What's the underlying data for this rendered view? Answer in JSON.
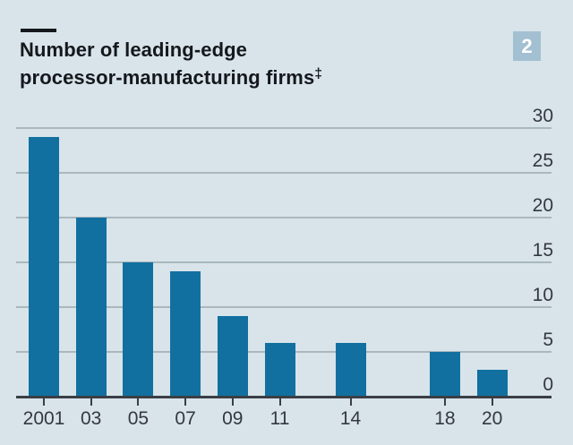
{
  "header": {
    "title_line1": "Number of leading-edge",
    "title_line2": "processor-manufacturing firms",
    "footnote_marker": "‡",
    "badge_label": "2"
  },
  "colors": {
    "background": "#d8e4ea",
    "bar": "#1270a0",
    "badge_background": "#a3c0d2",
    "badge_text": "#ffffff",
    "gridline": "#aab7bd",
    "axis": "#3a3f45",
    "title_text": "#15181c",
    "label_text": "#33383e"
  },
  "chart_data": {
    "type": "bar",
    "title": "Number of leading-edge processor-manufacturing firms‡",
    "categories": [
      "2001",
      "03",
      "05",
      "07",
      "09",
      "11",
      "14",
      "18",
      "20"
    ],
    "x_years": [
      2001,
      2003,
      2005,
      2007,
      2009,
      2011,
      2014,
      2018,
      2020
    ],
    "values": [
      29,
      20,
      15,
      14,
      9,
      6,
      6,
      5,
      3
    ],
    "xlabel": "",
    "ylabel": "",
    "ylim": [
      0,
      30
    ],
    "yticks": [
      0,
      5,
      10,
      15,
      20,
      25,
      30
    ],
    "y_axis_side": "right",
    "grid": "horizontal",
    "legend": "none"
  }
}
